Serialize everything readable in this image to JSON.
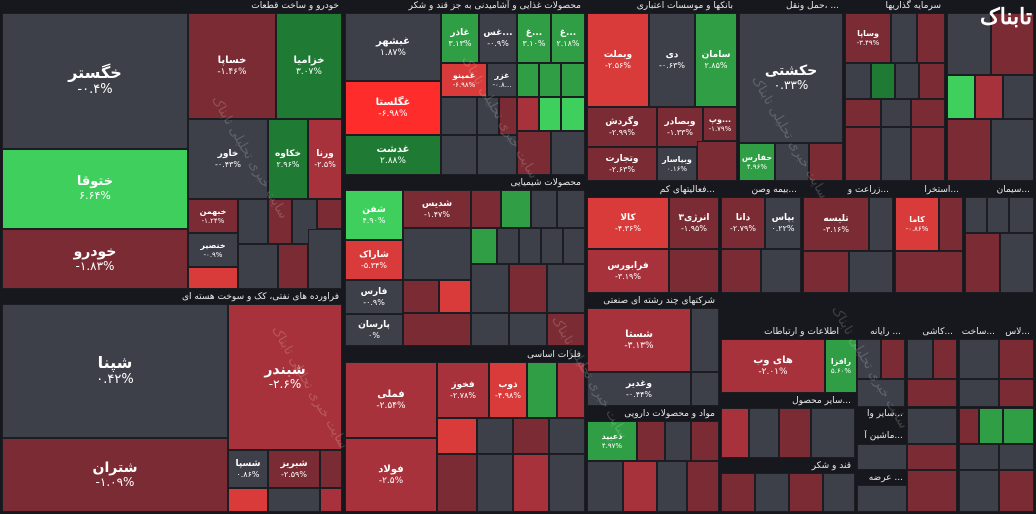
{
  "logo": {
    "text_main": "تابناک",
    "accent": "#e53935"
  },
  "watermark": "سایت خبری تحلیلی تابناک",
  "sectors": {
    "auto": "خودرو و ساخت قطعات",
    "food": "محصولات غذایی و آشامیدنی به جز قند و شکر",
    "banks": "بانکها و موسسات اعتباری",
    "transport": "حمل ونقل، ...",
    "invest": "سرمایه گذاریها",
    "oil": "فراورده های نفتی، کک و سوخت هسته ای",
    "chem": "محصولات شیمیایی",
    "multi": "فعالیتهای کم...",
    "insurance": "بیمه وصن...",
    "agri": "زراعت و...",
    "mining": "استخرا...",
    "cement": "سیمان...",
    "metals": "فلزات اساسی",
    "holding": "شرکتهای چند رشته ای صنعتی",
    "it": "اطلاعات و ارتباطات",
    "computer": "رایانه ...",
    "ceramic": "کاشی...",
    "glass": "لاس...",
    "construction": "ساخت...",
    "pharma": "مواد و محصولات دارویی",
    "other_products": "سایر محصول...",
    "sugar": "قند و شکر",
    "supply": "عرضه ...",
    "machinery": "ماشین آ...",
    "misc": "سایر وا..."
  },
  "tiles": {
    "khgostar": {
      "sym": "خگستر",
      "chg": "-۰.۴%"
    },
    "khotoga": {
      "sym": "ختوقا",
      "chg": "۶.۶۴%"
    },
    "khodro": {
      "sym": "خودرو",
      "chg": "-۱.۸۳%"
    },
    "khsapa": {
      "sym": "خساپا",
      "chg": "-۱.۴۶%"
    },
    "khazamia": {
      "sym": "خزامیا",
      "chg": "۳.۰۷%"
    },
    "khavar": {
      "sym": "خاور",
      "chg": "-۰.۴۳%"
    },
    "khkave": {
      "sym": "خکاوه",
      "chg": "۲.۹۶%"
    },
    "vrena": {
      "sym": "ورنا",
      "chg": "-۲.۵%"
    },
    "khbahman": {
      "sym": "خبهمن",
      "chg": "-۱.۲۴%"
    },
    "khansir": {
      "sym": "خنصیر",
      "chg": "-۰.۹%"
    },
    "ghshahr": {
      "sym": "غبشهر",
      "chg": "۱.۸۷%"
    },
    "ghazar": {
      "sym": "غاذر",
      "chg": "۳.۱۳%"
    },
    "ghos": {
      "sym": "غس...",
      "chg": "-۰.۹%"
    },
    "gh1": {
      "sym": "غ...",
      "chg": "۳.۱۰%"
    },
    "gh2": {
      "sym": "غ...",
      "chg": "۲.۱۸%"
    },
    "ghgolestan": {
      "sym": "غگلستا",
      "chg": "-۶.۹۸%"
    },
    "ghminu": {
      "sym": "غمینو",
      "chg": "-۶.۹۸%"
    },
    "ghazar2": {
      "sym": "غزر",
      "chg": "-۰.۸..."
    },
    "ghdasht": {
      "sym": "غدشت",
      "chg": "۲.۸۸%"
    },
    "vbmelat": {
      "sym": "وبملت",
      "chg": "-۲.۵۶%"
    },
    "di": {
      "sym": "دی",
      "chg": "-۰.۶۳%"
    },
    "saman": {
      "sym": "سامان",
      "chg": "۲.۸۵%"
    },
    "vgardesh": {
      "sym": "وگردش",
      "chg": "-۲.۹۹%"
    },
    "vbsader": {
      "sym": "وبصادر",
      "chg": "-۱.۳۳%"
    },
    "vp": {
      "sym": "وپ...",
      "chg": "-۱.۷۹%"
    },
    "vtejarat": {
      "sym": "وتجارت",
      "chg": "-۲.۶۳%"
    },
    "vbimar": {
      "sym": "وبیاسار",
      "chg": "۰.۱۶%"
    },
    "hkeshti": {
      "sym": "حکشتی",
      "chg": "۰.۳۳%"
    },
    "hafaras": {
      "sym": "حفارس",
      "chg": "۴.۹۶%"
    },
    "vsapa": {
      "sym": "وساپا",
      "chg": "-۳.۴۹%"
    },
    "shpna": {
      "sym": "شپنا",
      "chg": "۰.۴۲%"
    },
    "shbandar": {
      "sym": "شبندر",
      "chg": "-۲.۶%"
    },
    "shtran": {
      "sym": "شتران",
      "chg": "-۱.۰۹%"
    },
    "shsapa": {
      "sym": "شسپا",
      "chg": "۰.۸۶%"
    },
    "shbariz": {
      "sym": "شبریز",
      "chg": "-۲.۵۹%"
    },
    "shafan": {
      "sym": "شفن",
      "chg": "۴.۹۰%"
    },
    "shdis": {
      "sym": "شدیس",
      "chg": "-۱.۴۷%"
    },
    "shark": {
      "sym": "شاراک",
      "chg": "-۵.۳۴%"
    },
    "fars": {
      "sym": "فارس",
      "chg": "-۰.۹%"
    },
    "parsan": {
      "sym": "پارسان",
      "chg": "۰%"
    },
    "kala": {
      "sym": "کالا",
      "chg": "-۴.۳۶%"
    },
    "energy3": {
      "sym": "انرژی۳",
      "chg": "-۱.۹۵%"
    },
    "farabors": {
      "sym": "فرابورس",
      "chg": "-۳.۱۹%"
    },
    "dana": {
      "sym": "دانا",
      "chg": "-۲.۷۹%"
    },
    "bpas": {
      "sym": "بپاس",
      "chg": "۰.۲۲%"
    },
    "telise": {
      "sym": "تلیسه",
      "chg": "-۳.۱۶%"
    },
    "kama": {
      "sym": "کاما",
      "chg": "-۰.۸۶%"
    },
    "fmli": {
      "sym": "فملی",
      "chg": "-۲.۵۴%"
    },
    "fkhoz": {
      "sym": "فخوز",
      "chg": "-۲.۷۸%"
    },
    "zob": {
      "sym": "ذوب",
      "chg": "-۴.۹۸%"
    },
    "fooolad": {
      "sym": "فولاد",
      "chg": "-۲.۵%"
    },
    "shasta": {
      "sym": "شستا",
      "chg": "-۳.۱۳%"
    },
    "vghadir": {
      "sym": "وغدیر",
      "chg": "-۰.۴۴%"
    },
    "hayweb": {
      "sym": "های وب",
      "chg": "-۲.۰۱%"
    },
    "rafza": {
      "sym": "رافزا",
      "chg": "۵.۶۰%"
    },
    "dabid": {
      "sym": "دعبید",
      "chg": "۴.۹۷%"
    }
  }
}
